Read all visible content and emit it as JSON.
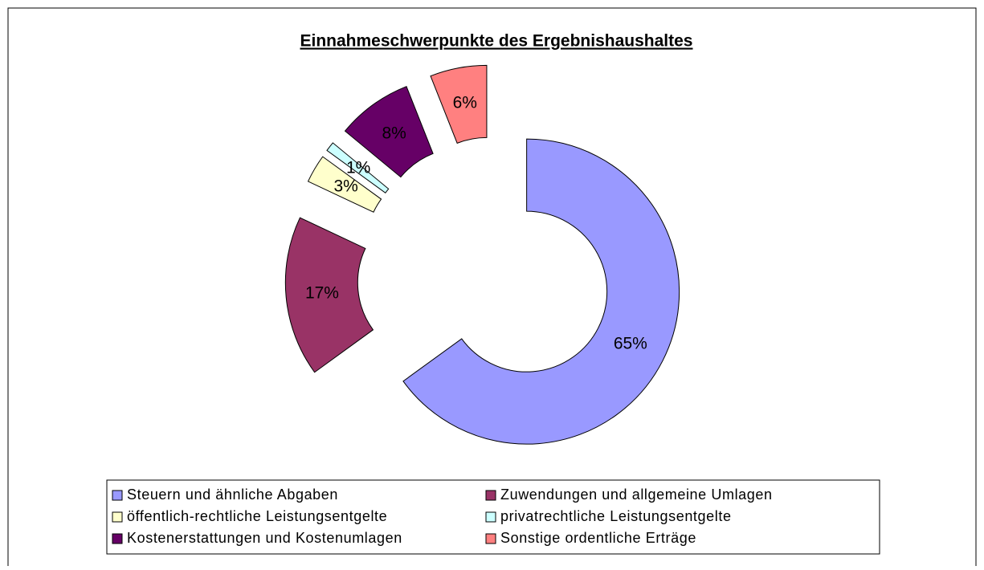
{
  "chart_data": {
    "type": "donut",
    "title": "Einnahmeschwerpunkte des Ergebnishaushaltes",
    "categories": [
      "Steuern und ähnliche Abgaben",
      "Zuwendungen und allgemeine Umlagen",
      "öffentlich-rechtliche Leistungsentgelte",
      "privatrechtliche Leistungsentgelte",
      "Kostenerstattungen und Kostenumlagen",
      "Sonstige ordentliche Erträge"
    ],
    "values": [
      65,
      17,
      3,
      1,
      8,
      6
    ],
    "value_labels": [
      "65%",
      "17%",
      "3%",
      "1%",
      "8%",
      "6%"
    ],
    "colors": [
      "#9999ff",
      "#993366",
      "#ffffcc",
      "#ccffff",
      "#660066",
      "#ff8080"
    ],
    "legend": "bottom"
  }
}
